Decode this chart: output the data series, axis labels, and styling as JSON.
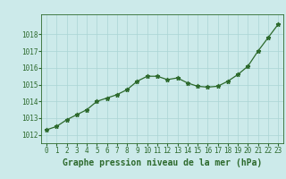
{
  "x": [
    0,
    1,
    2,
    3,
    4,
    5,
    6,
    7,
    8,
    9,
    10,
    11,
    12,
    13,
    14,
    15,
    16,
    17,
    18,
    19,
    20,
    21,
    22,
    23
  ],
  "y": [
    1012.3,
    1012.5,
    1012.9,
    1013.2,
    1013.5,
    1014.0,
    1014.2,
    1014.4,
    1014.7,
    1015.2,
    1015.5,
    1015.5,
    1015.3,
    1015.4,
    1015.1,
    1014.9,
    1014.85,
    1014.9,
    1015.2,
    1015.6,
    1016.1,
    1017.0,
    1017.8,
    1018.6
  ],
  "line_color": "#2d6a2d",
  "marker": "*",
  "marker_size": 3.5,
  "bg_color": "#cceaea",
  "grid_color": "#aad4d4",
  "xlabel": "Graphe pression niveau de la mer (hPa)",
  "xlabel_fontsize": 7,
  "tick_fontsize": 5.5,
  "ylim": [
    1011.5,
    1019.2
  ],
  "yticks": [
    1012,
    1013,
    1014,
    1015,
    1016,
    1017,
    1018
  ],
  "xlim": [
    -0.5,
    23.5
  ],
  "xticks": [
    0,
    1,
    2,
    3,
    4,
    5,
    6,
    7,
    8,
    9,
    10,
    11,
    12,
    13,
    14,
    15,
    16,
    17,
    18,
    19,
    20,
    21,
    22,
    23
  ],
  "line_width": 0.9
}
